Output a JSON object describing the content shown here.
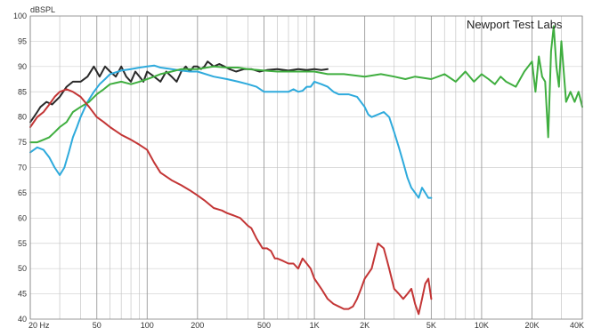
{
  "chart_data": {
    "type": "line",
    "title": "",
    "ylabel": "dBSPL",
    "xlabel": "",
    "annotation": "Newport Test Labs",
    "x_scale": "log",
    "xlim": [
      20,
      40000
    ],
    "ylim": [
      40,
      100
    ],
    "grid": true,
    "y_ticks": [
      40,
      45,
      50,
      55,
      60,
      65,
      70,
      75,
      80,
      85,
      90,
      95,
      100
    ],
    "x_ticks": [
      {
        "value": 20,
        "label": "20  Hz"
      },
      {
        "value": 50,
        "label": "50"
      },
      {
        "value": 100,
        "label": "100"
      },
      {
        "value": 200,
        "label": "200"
      },
      {
        "value": 500,
        "label": "500"
      },
      {
        "value": 1000,
        "label": "1K"
      },
      {
        "value": 2000,
        "label": "2K"
      },
      {
        "value": 5000,
        "label": "5K"
      },
      {
        "value": 10000,
        "label": "10K"
      },
      {
        "value": 20000,
        "label": "20K"
      },
      {
        "value": 40000,
        "label": "40K"
      }
    ],
    "series": [
      {
        "color": "#2a2a2a",
        "x": [
          20,
          21,
          22,
          23,
          25,
          27,
          30,
          33,
          36,
          40,
          44,
          48,
          52,
          56,
          60,
          65,
          70,
          75,
          80,
          85,
          90,
          95,
          100,
          110,
          120,
          130,
          140,
          150,
          160,
          170,
          180,
          190,
          200,
          210,
          220,
          230,
          240,
          250,
          270,
          290,
          310,
          340,
          380,
          420,
          470,
          520,
          600,
          700,
          800,
          900,
          1000,
          1100,
          1200
        ],
        "y": [
          79,
          80,
          81,
          82,
          83,
          82.5,
          84,
          86,
          87,
          87,
          88,
          90,
          88,
          90,
          89,
          88,
          90,
          88,
          87,
          89,
          88,
          87,
          89,
          88,
          87,
          89,
          88,
          87,
          89,
          90,
          89,
          90,
          90,
          89.5,
          90,
          91,
          90.5,
          90,
          90.5,
          90,
          89.5,
          89,
          89.5,
          89.5,
          89,
          89.3,
          89.5,
          89.2,
          89.5,
          89.3,
          89.5,
          89.3,
          89.5
        ]
      },
      {
        "color": "#2eaadc",
        "x": [
          20,
          22,
          24,
          26,
          28,
          30,
          32,
          34,
          36,
          38,
          40,
          44,
          48,
          52,
          56,
          60,
          70,
          80,
          90,
          100,
          110,
          120,
          140,
          160,
          180,
          200,
          250,
          300,
          350,
          400,
          450,
          500,
          550,
          600,
          650,
          700,
          750,
          800,
          850,
          900,
          950,
          1000,
          1100,
          1200,
          1300,
          1400,
          1600,
          1800,
          2000,
          2100,
          2200,
          2400,
          2600,
          2800,
          3000,
          3200,
          3400,
          3600,
          3800,
          4000,
          4200,
          4400,
          4600,
          4800,
          5000
        ],
        "y": [
          73,
          74,
          73.5,
          72,
          70,
          68.5,
          70,
          73,
          76,
          78,
          80,
          83,
          85,
          86.5,
          87.5,
          88.5,
          89.2,
          89.5,
          89.8,
          90,
          90.2,
          89.8,
          89.5,
          89.2,
          89,
          89,
          88,
          87.5,
          87,
          86.5,
          86,
          85,
          85,
          85,
          85,
          85,
          85.5,
          85,
          85.2,
          86,
          86,
          87,
          86.5,
          86,
          85,
          84.5,
          84.5,
          84,
          82,
          80.5,
          80,
          80.5,
          81,
          80,
          77,
          74,
          71,
          68,
          66,
          65,
          64,
          66,
          65,
          64,
          64
        ]
      },
      {
        "color": "#3fae3f",
        "x": [
          20,
          22,
          24,
          26,
          28,
          30,
          33,
          36,
          40,
          45,
          50,
          55,
          60,
          70,
          80,
          90,
          100,
          110,
          120,
          140,
          160,
          180,
          200,
          250,
          300,
          350,
          400,
          500,
          600,
          700,
          800,
          1000,
          1200,
          1500,
          2000,
          2500,
          3000,
          3500,
          4000,
          5000,
          6000,
          7000,
          8000,
          9000,
          10000,
          11000,
          12000,
          13000,
          14000,
          16000,
          18000,
          20000,
          21000,
          22000,
          23000,
          24000,
          25000,
          26000,
          27000,
          28000,
          29000,
          30000,
          32000,
          34000,
          36000,
          38000,
          40000
        ],
        "y": [
          75,
          75,
          75.5,
          76,
          77,
          78,
          79,
          81,
          82,
          83,
          84.5,
          85.5,
          86.5,
          87,
          86.5,
          87,
          87.5,
          88,
          88.5,
          89,
          89.5,
          89.5,
          89.5,
          90,
          89.8,
          89.8,
          89.5,
          89.2,
          89,
          89,
          89,
          89,
          88.5,
          88.5,
          88,
          88.5,
          88,
          87.5,
          88,
          87.5,
          88.5,
          87,
          89,
          87,
          88.5,
          87.5,
          86.5,
          88,
          87,
          86,
          89,
          91,
          85,
          92,
          88,
          87,
          76,
          93,
          98,
          90,
          86,
          95,
          83,
          85,
          83,
          85,
          82
        ]
      },
      {
        "color": "#c33535",
        "x": [
          20,
          22,
          24,
          26,
          28,
          30,
          33,
          36,
          40,
          45,
          50,
          55,
          60,
          70,
          80,
          90,
          100,
          110,
          120,
          140,
          160,
          180,
          200,
          220,
          250,
          280,
          300,
          330,
          360,
          400,
          420,
          450,
          470,
          490,
          520,
          550,
          580,
          600,
          650,
          700,
          750,
          800,
          850,
          900,
          950,
          1000,
          1100,
          1200,
          1300,
          1400,
          1500,
          1600,
          1700,
          1800,
          1900,
          2000,
          2200,
          2400,
          2600,
          2700,
          2800,
          2900,
          3000,
          3200,
          3400,
          3600,
          3800,
          4000,
          4200,
          4400,
          4600,
          4800,
          5000
        ],
        "y": [
          78,
          80,
          81,
          82.5,
          84,
          85,
          85.5,
          85,
          84,
          82,
          80,
          79,
          78,
          76.5,
          75.5,
          74.5,
          73.5,
          71,
          69,
          67.5,
          66.5,
          65.5,
          64.5,
          63.5,
          62,
          61.5,
          61,
          60.5,
          60,
          58.5,
          58,
          56,
          55,
          54,
          54,
          53.5,
          52,
          52,
          51.5,
          51,
          51,
          50,
          52,
          51,
          50,
          48,
          46,
          44,
          43,
          42.5,
          42,
          42,
          42.5,
          44,
          46,
          48,
          50,
          55,
          54,
          52,
          50,
          48,
          46,
          45,
          44,
          45,
          46,
          43,
          41,
          44,
          47,
          48,
          44
        ]
      }
    ]
  }
}
